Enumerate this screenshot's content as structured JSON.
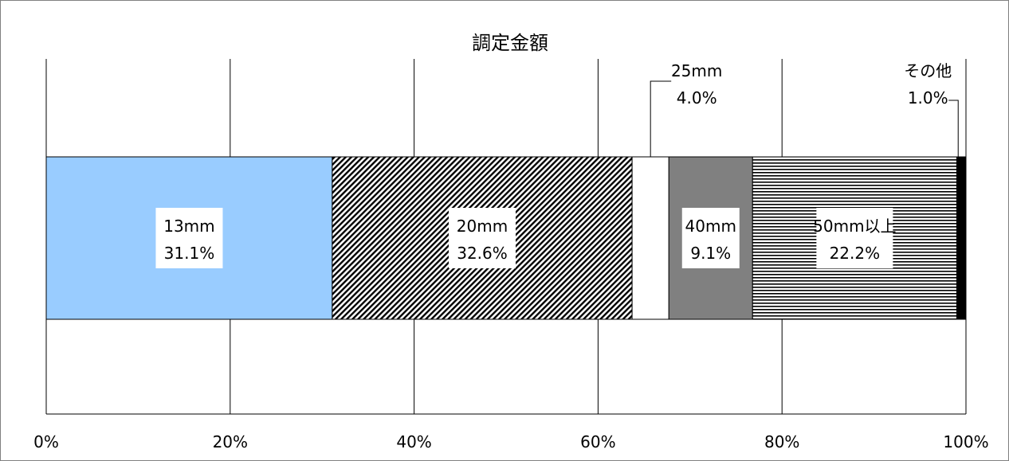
{
  "chart_data": {
    "type": "bar",
    "orientation": "horizontal",
    "stacked": true,
    "title": "調定金額",
    "xlim": [
      0,
      100
    ],
    "x_ticks": [
      "0%",
      "20%",
      "40%",
      "60%",
      "80%",
      "100%"
    ],
    "grid": true,
    "legend": "none",
    "series": [
      {
        "name": "13mm",
        "value": 31.1,
        "value_label": "31.1%",
        "color": "#99ccff",
        "fill": "solid"
      },
      {
        "name": "20mm",
        "value": 32.6,
        "value_label": "32.6%",
        "color": "#000000",
        "fill": "diagonal-hatch"
      },
      {
        "name": "25mm",
        "value": 4.0,
        "value_label": "4.0%",
        "color": "#ffffff",
        "fill": "solid"
      },
      {
        "name": "40mm",
        "value": 9.1,
        "value_label": "9.1%",
        "color": "#808080",
        "fill": "solid"
      },
      {
        "name": "50mm以上",
        "value": 22.2,
        "value_label": "22.2%",
        "color": "#000000",
        "fill": "horizontal-lines"
      },
      {
        "name": "その他",
        "value": 1.0,
        "value_label": "1.0%",
        "color": "#000000",
        "fill": "solid"
      }
    ]
  }
}
